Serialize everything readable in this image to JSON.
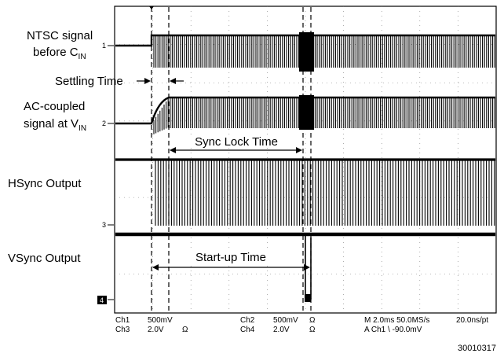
{
  "labels": {
    "ntsc_line1": "NTSC signal",
    "ntsc_line2": "before C",
    "ntsc_sub": "IN",
    "settling": "Settling Time",
    "ac_line1": "AC-coupled",
    "ac_line2": "signal at V",
    "ac_sub": "IN",
    "hsync": "HSync Output",
    "vsync": "VSync Output"
  },
  "annotations": {
    "sync_lock": "Sync Lock Time",
    "startup": "Start-up Time"
  },
  "channel_markers": [
    "1",
    "2",
    "3",
    "4"
  ],
  "status_bar": {
    "ch1": "Ch1",
    "ch1_scale": "500mV",
    "ch2": "Ch2",
    "ch2_scale": "500mV",
    "ohm": "Ω",
    "ch3": "Ch3",
    "ch3_scale": "2.0V",
    "ch4": "Ch4",
    "ch4_scale": "2.0V",
    "timebase": "M 2.0ms 50.0MS/s",
    "res": "20.0ns/pt",
    "trigger": "A  Ch1  \\  -90.0mV"
  },
  "figure_number": "30010317"
}
